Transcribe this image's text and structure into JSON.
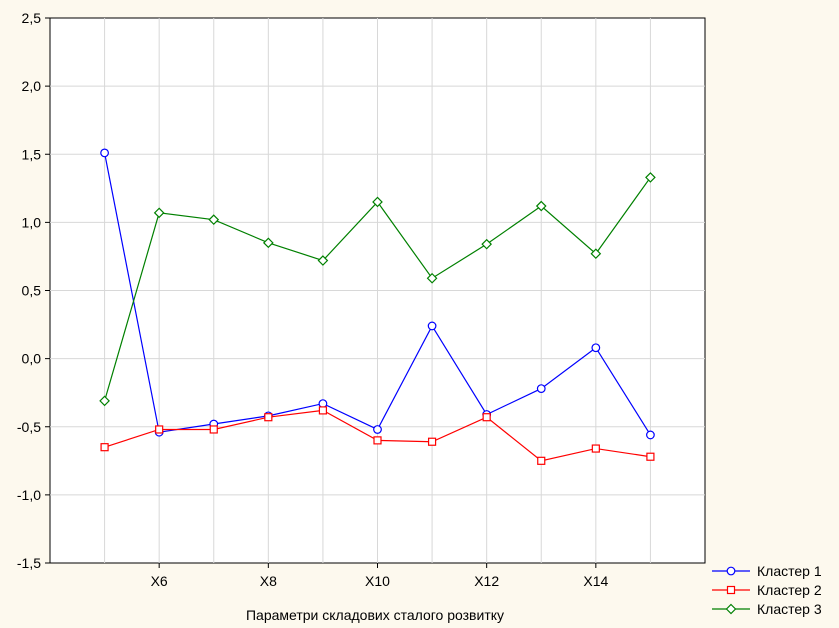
{
  "chart_data": {
    "type": "line",
    "x": [
      1,
      2,
      3,
      4,
      5,
      6,
      7,
      8,
      9,
      10,
      11
    ],
    "x_tick_labels": [
      "X6",
      "X8",
      "X10",
      "X12",
      "X14"
    ],
    "x_tick_positions": [
      2,
      4,
      6,
      8,
      10
    ],
    "xlim": [
      0,
      12
    ],
    "ylim": [
      -1.5,
      2.5
    ],
    "y_ticks": [
      -1.5,
      -1.0,
      -0.5,
      0.0,
      0.5,
      1.0,
      1.5,
      2.0,
      2.5
    ],
    "y_tick_labels": [
      "-1,5",
      "-1,0",
      "-0,5",
      "0,0",
      "0,5",
      "1,0",
      "1,5",
      "2,0",
      "2,5"
    ],
    "xlabel": "Параметри складових сталого розвитку",
    "ylabel": "",
    "title": "",
    "grid": true,
    "legend_position": "bottom-right-outside",
    "series": [
      {
        "name": "Кластер 1",
        "color": "#0000ff",
        "marker": "circle",
        "values": [
          1.51,
          -0.54,
          -0.48,
          -0.42,
          -0.33,
          -0.52,
          0.24,
          -0.41,
          -0.22,
          0.08,
          -0.56
        ]
      },
      {
        "name": "Кластер 2",
        "color": "#ff0000",
        "marker": "square",
        "values": [
          -0.65,
          -0.52,
          -0.52,
          -0.43,
          -0.38,
          -0.6,
          -0.61,
          -0.43,
          -0.75,
          -0.66,
          -0.72
        ]
      },
      {
        "name": "Кластер 3",
        "color": "#008000",
        "marker": "diamond",
        "values": [
          -0.31,
          1.07,
          1.02,
          0.85,
          0.72,
          1.15,
          0.59,
          0.84,
          1.12,
          0.77,
          1.33
        ]
      }
    ]
  }
}
